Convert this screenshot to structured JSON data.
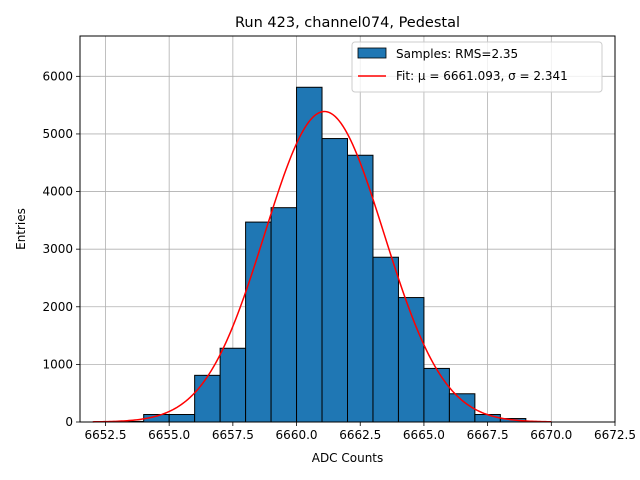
{
  "chart_data": {
    "type": "bar",
    "title": "Run 423, channel074, Pedestal",
    "xlabel": "ADC Counts",
    "ylabel": "Entries",
    "xlim": [
      6651.5,
      6672.5
    ],
    "ylim": [
      0,
      6700
    ],
    "x_ticks": [
      6652.5,
      6655.0,
      6657.5,
      6660.0,
      6662.5,
      6665.0,
      6667.5,
      6670.0,
      6672.5
    ],
    "x_tick_labels": [
      "6652.5",
      "6655.0",
      "6657.5",
      "6660.0",
      "6662.5",
      "6665.0",
      "6667.5",
      "6670.0",
      "6672.5"
    ],
    "y_ticks": [
      0,
      1000,
      2000,
      3000,
      4000,
      5000,
      6000
    ],
    "y_tick_labels": [
      "0",
      "1000",
      "2000",
      "3000",
      "4000",
      "5000",
      "6000"
    ],
    "grid": true,
    "legend_position": "top-right",
    "series": [
      {
        "name": "Samples: RMS=2.35",
        "kind": "histogram",
        "color": "#1f77b4",
        "edgecolor": "#000000",
        "bin_edges": [
          6652,
          6653,
          6654,
          6655,
          6656,
          6657,
          6658,
          6659,
          6660,
          6661,
          6662,
          6663,
          6664,
          6665,
          6666,
          6667,
          6668,
          6669,
          6670,
          6671,
          6672
        ],
        "values": [
          0,
          10,
          130,
          130,
          810,
          1280,
          3470,
          3720,
          5810,
          4920,
          4630,
          2860,
          2160,
          930,
          490,
          130,
          60,
          0,
          0,
          0
        ]
      },
      {
        "name": "Fit: μ = 6661.093, σ = 2.341",
        "kind": "line",
        "color": "#ff0000",
        "mu": 6661.093,
        "sigma": 2.341,
        "amplitude": 5390,
        "x_range": [
          6652,
          6670
        ]
      }
    ]
  }
}
